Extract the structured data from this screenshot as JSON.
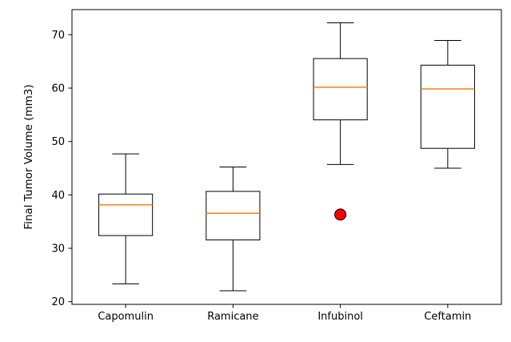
{
  "figure": {
    "background": "#ffffff"
  },
  "chart_data": {
    "type": "box",
    "title": "",
    "xlabel": "",
    "ylabel": "Final Tumor Volume (mm3)",
    "categories": [
      "Capomulin",
      "Ramicane",
      "Infubinol",
      "Ceftamin"
    ],
    "series": [
      {
        "name": "Capomulin",
        "whisker_low": 23.34,
        "q1": 32.38,
        "median": 38.13,
        "q3": 40.16,
        "whisker_high": 47.69,
        "outliers": []
      },
      {
        "name": "Ramicane",
        "whisker_low": 22.05,
        "q1": 31.56,
        "median": 36.56,
        "q3": 40.66,
        "whisker_high": 45.22,
        "outliers": []
      },
      {
        "name": "Infubinol",
        "whisker_low": 45.7,
        "q1": 54.05,
        "median": 60.17,
        "q3": 65.53,
        "whisker_high": 72.23,
        "outliers": [
          36.32
        ]
      },
      {
        "name": "Ceftamin",
        "whisker_low": 45.0,
        "q1": 48.72,
        "median": 59.85,
        "q3": 64.3,
        "whisker_high": 68.92,
        "outliers": []
      }
    ],
    "ylim": [
      19.5,
      74.7
    ],
    "yticks": [
      20,
      30,
      40,
      50,
      60,
      70
    ],
    "grid": false,
    "legend": false,
    "colors": {
      "box_edge": "#000000",
      "box_fill": "#ffffff",
      "median": "#ff7f0e",
      "whisker": "#000000",
      "outlier_fill": "#ff0000",
      "outlier_edge": "#000000"
    }
  }
}
